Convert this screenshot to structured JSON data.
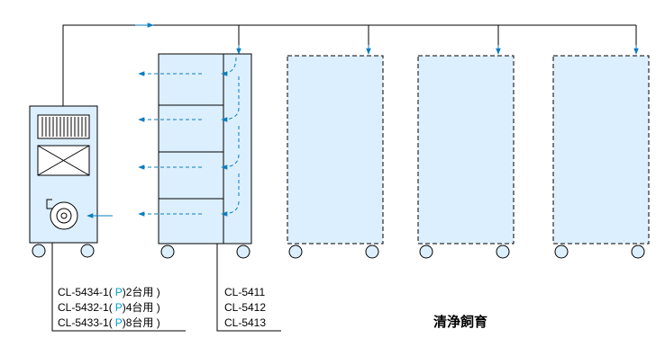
{
  "colors": {
    "fill": "#dcefff",
    "line": "#000000",
    "arrow": "#0a7dc0",
    "p_mark": "#00a0c8"
  },
  "left_labels": [
    {
      "model": "CL-5434-1(",
      "p": "P",
      "units": ")2台用 )"
    },
    {
      "model": "CL-5432-1(",
      "p": "P",
      "units": ")4台用 )"
    },
    {
      "model": "CL-5433-1(",
      "p": "P",
      "units": ")8台用 )"
    }
  ],
  "rack_labels": [
    "CL-5411",
    "CL-5412",
    "CL-5413"
  ],
  "title": "清浄飼育"
}
